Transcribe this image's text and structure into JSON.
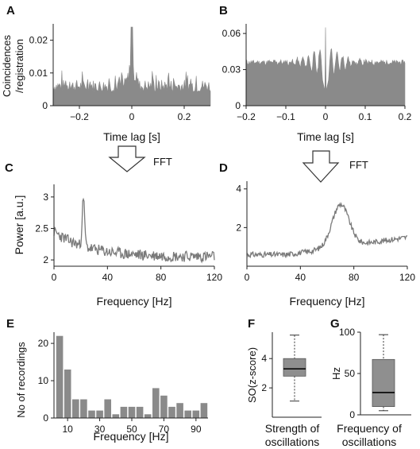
{
  "colors": {
    "fill": "#8a8a8a",
    "trace": "#7a7a7a",
    "axis": "#222222",
    "box_fill": "#8f8f8f"
  },
  "labels": {
    "a": "A",
    "b": "B",
    "c": "C",
    "d": "D",
    "e": "E",
    "f": "F",
    "g": "G"
  },
  "fft_label": "FFT",
  "chart_data": [
    {
      "id": "A",
      "type": "area",
      "xlabel": "Time lag [s]",
      "ylabel_line1": "Coincidences",
      "ylabel_line2": "/registration",
      "xlim": [
        -0.3,
        0.3
      ],
      "ylim": [
        0,
        0.025
      ],
      "xticks": [
        -0.2,
        0,
        0.2
      ],
      "xtick_labels": [
        "−0.2",
        "0",
        "0.2"
      ],
      "yticks": [
        0,
        0.01,
        0.02
      ],
      "ytick_labels": [
        "0",
        "0.01",
        "0.02"
      ],
      "baseline": 0.006,
      "peak": {
        "x": 0,
        "y": 0.024
      }
    },
    {
      "id": "B",
      "type": "area",
      "xlabel": "Time lag [s]",
      "xlim": [
        -0.2,
        0.2
      ],
      "ylim": [
        0,
        0.068
      ],
      "xticks": [
        -0.2,
        -0.1,
        0,
        0.1,
        0.2
      ],
      "xtick_labels": [
        "−0.2",
        "−0.1",
        "0",
        "0.1",
        "0.2"
      ],
      "yticks": [
        0,
        0.03,
        0.06
      ],
      "ytick_labels": [
        "0",
        "0.03",
        "0.06"
      ],
      "baseline": 0.036,
      "peak": {
        "x": 0,
        "y": 0.065
      },
      "trough": {
        "x": 0,
        "y": 0.01
      }
    },
    {
      "id": "C",
      "type": "line",
      "xlabel": "Frequency [Hz]",
      "ylabel": "Power [a.u.]",
      "xlim": [
        0,
        120
      ],
      "ylim": [
        1.9,
        3.2
      ],
      "xticks": [
        0,
        40,
        80,
        120
      ],
      "xtick_labels": [
        "0",
        "40",
        "80",
        "120"
      ],
      "yticks": [
        2,
        2.5,
        3
      ],
      "ytick_labels": [
        "2",
        "2.5",
        "3"
      ],
      "peak": {
        "x": 22,
        "y": 3.05
      }
    },
    {
      "id": "D",
      "type": "line",
      "xlabel": "Frequency [Hz]",
      "xlim": [
        0,
        120
      ],
      "ylim": [
        0,
        4.4
      ],
      "xticks": [
        0,
        40,
        80,
        120
      ],
      "xtick_labels": [
        "0",
        "40",
        "80",
        "120"
      ],
      "yticks": [
        2,
        4
      ],
      "ytick_labels": [
        "2",
        "4"
      ],
      "peak": {
        "x": 70,
        "y": 3.4
      }
    },
    {
      "id": "E",
      "type": "bar",
      "xlabel": "Frequency [Hz]",
      "ylabel": "No of recordings",
      "x": [
        5,
        10,
        15,
        20,
        25,
        30,
        35,
        40,
        45,
        50,
        55,
        60,
        65,
        70,
        75,
        80,
        85,
        90,
        95
      ],
      "values": [
        22,
        13,
        5,
        5,
        2,
        2,
        5,
        1,
        3,
        3,
        3,
        1,
        8,
        6,
        3,
        4,
        2,
        2,
        4
      ],
      "xticks": [
        10,
        30,
        50,
        70,
        90
      ],
      "xtick_labels": [
        "10",
        "30",
        "50",
        "70",
        "90"
      ],
      "yticks": [
        0,
        10,
        20
      ],
      "ytick_labels": [
        "0",
        "10",
        "20"
      ],
      "ylim": [
        0,
        23
      ]
    },
    {
      "id": "F",
      "type": "box",
      "ylabel": "SO(z-score)",
      "xlabel_line1": "Strength of",
      "xlabel_line2": "oscillations",
      "ylim": [
        0,
        5.8
      ],
      "yticks": [
        2,
        4
      ],
      "ytick_labels": [
        "2",
        "4"
      ],
      "whisker_low": 1.1,
      "q1": 2.8,
      "median": 3.3,
      "q3": 4.0,
      "whisker_high": 5.6
    },
    {
      "id": "G",
      "type": "box",
      "ylabel": "Hz",
      "xlabel_line1": "Frequency of",
      "xlabel_line2": "oscillations",
      "ylim": [
        0,
        100
      ],
      "yticks": [
        0,
        50,
        100
      ],
      "ytick_labels": [
        "0",
        "50",
        "100"
      ],
      "whisker_low": 5,
      "q1": 10,
      "median": 27,
      "q3": 67,
      "whisker_high": 97
    }
  ]
}
